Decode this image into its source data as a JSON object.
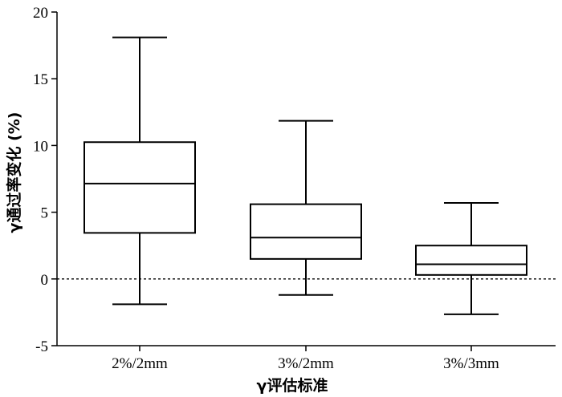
{
  "chart_data": {
    "type": "box",
    "xlabel": "γ评估标准",
    "ylabel": "γ通过率变化 (%)",
    "ylim": [
      -5,
      20
    ],
    "yticks": [
      -5,
      0,
      5,
      10,
      15,
      20
    ],
    "ytick_labels": [
      "-5",
      "0",
      "5",
      "10",
      "15",
      "20"
    ],
    "reference_line": {
      "y": 0,
      "style": "dotted"
    },
    "categories": [
      "2%/2mm",
      "3%/2mm",
      "3%/3mm"
    ],
    "boxes": [
      {
        "category": "2%/2mm",
        "min": -1.9,
        "q1": 3.45,
        "median": 7.15,
        "q3": 10.25,
        "max": 18.1
      },
      {
        "category": "3%/2mm",
        "min": -1.2,
        "q1": 1.5,
        "median": 3.1,
        "q3": 5.6,
        "max": 11.85
      },
      {
        "category": "3%/3mm",
        "min": -2.65,
        "q1": 0.3,
        "median": 1.1,
        "q3": 2.5,
        "max": 5.7
      }
    ]
  }
}
